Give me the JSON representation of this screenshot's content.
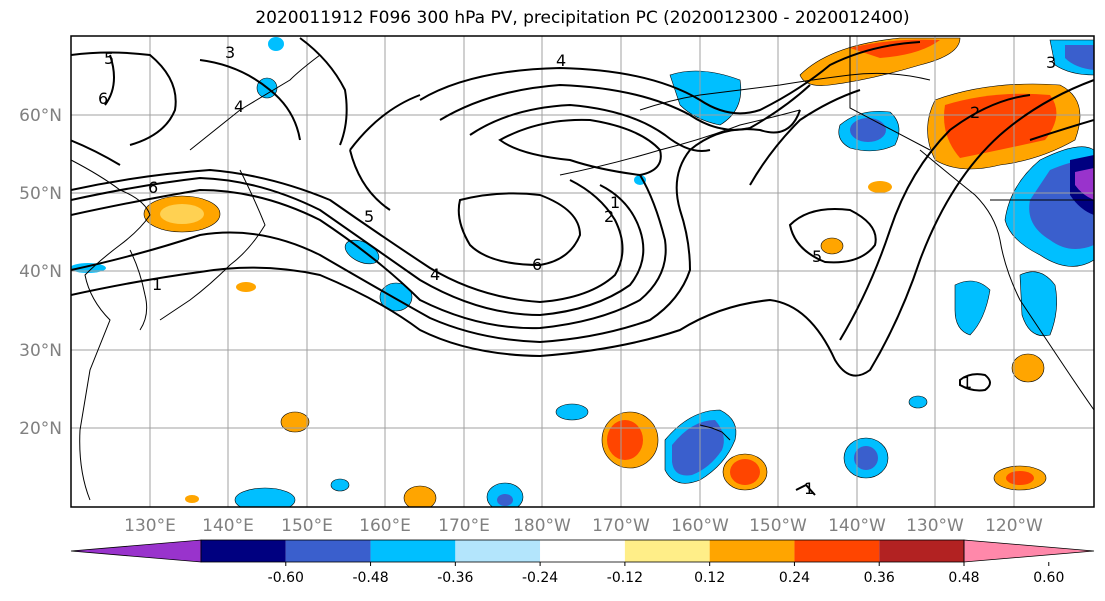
{
  "title": "2020011912 F096 300 hPa PV, precipitation PC (2020012300 - 2020012400)",
  "map": {
    "lat_labels": [
      "60°N",
      "50°N",
      "40°N",
      "30°N",
      "20°N"
    ],
    "lon_labels": [
      "130°E",
      "140°E",
      "150°E",
      "160°E",
      "170°E",
      "180°W",
      "170°W",
      "160°W",
      "150°W",
      "140°W",
      "130°W",
      "120°W"
    ],
    "contour_labels": [
      "5",
      "3",
      "4",
      "6",
      "6",
      "1",
      "5",
      "4",
      "6",
      "2",
      "1",
      "5",
      "2",
      "3",
      "4",
      "1",
      "1"
    ],
    "contour_color": "#000000"
  },
  "colorbar": {
    "colors": [
      "#9933cc",
      "#000080",
      "#3a5fcd",
      "#00bfff",
      "#b3e5fc",
      "#ffffff",
      "#ffee88",
      "#ffa500",
      "#ff4500",
      "#b22222",
      "#ff88aa"
    ],
    "tick_labels": [
      "-0.60",
      "-0.48",
      "-0.36",
      "-0.24",
      "-0.12",
      "0.12",
      "0.24",
      "0.36",
      "0.48",
      "0.60"
    ]
  }
}
